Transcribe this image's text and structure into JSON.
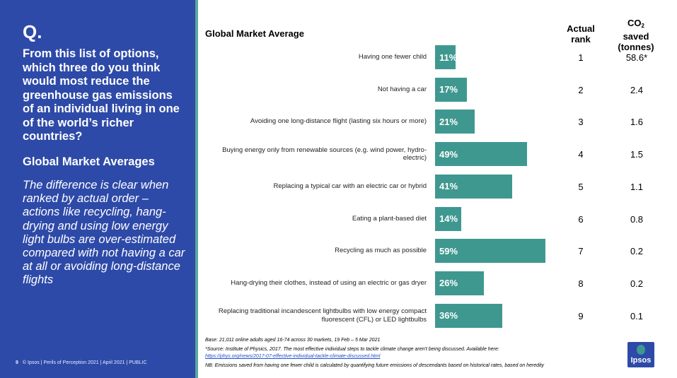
{
  "left_panel": {
    "q_label": "Q.",
    "question": "From this list of options, which three do you think would most reduce the greenhouse gas emissions of an individual living in one of the world’s richer countries?",
    "subhead": "Global Market Averages",
    "note": "The difference is clear when ranked by actual order – actions like recycling, hang-drying and using low energy light bulbs are over-estimated compared with not having a car at all or avoiding long-distance flights",
    "page_number": "9",
    "footer": "© Ipsos | Perils of Perception 2021 | April 2021 | PUBLIC"
  },
  "columns": {
    "rank_line1": "Actual",
    "rank_line2": "rank",
    "co2_line1": "CO",
    "co2_sub": "2",
    "co2_line2": "saved",
    "co2_line3": "(tonnes)"
  },
  "chart_data": {
    "type": "bar",
    "orientation": "horizontal",
    "title": "Global Market Average",
    "value_unit": "%",
    "x_range": [
      0,
      100
    ],
    "categories": [
      "Having one fewer child",
      "Not having a car",
      "Avoiding one long-distance flight (lasting six hours or more)",
      "Buying energy only from renewable sources (e.g. wind power, hydro-electric)",
      "Replacing a typical car with an electric car or hybrid",
      "Eating a plant-based diet",
      "Recycling as much as possible",
      "Hang-drying their clothes, instead of using an electric or gas dryer",
      "Replacing traditional incandescent lightbulbs with low energy compact fluorescent (CFL) or LED lightbulbs"
    ],
    "values": [
      11,
      17,
      21,
      49,
      41,
      14,
      59,
      26,
      36
    ],
    "value_labels": [
      "11%",
      "17%",
      "21%",
      "49%",
      "41%",
      "14%",
      "59%",
      "26%",
      "36%"
    ],
    "actual_rank": [
      "1",
      "2",
      "3",
      "4",
      "5",
      "6",
      "7",
      "8",
      "9"
    ],
    "co2_saved_tonnes": [
      "58.6*",
      "2.4",
      "1.6",
      "1.5",
      "1.1",
      "0.8",
      "0.2",
      "0.2",
      "0.1"
    ],
    "bar_color": "#3f9890"
  },
  "footnotes": {
    "base": "Base: 21,011 online adults aged 16-74 across 30 markets,  19 Feb – 5 Mar 2021",
    "source": "*Source: Institute of Physics, 2017. The most effective individual steps to tackle climate change aren't being discussed. Available here:",
    "source_link": "https://phys.org/news/2017-07-effective-individual-tackle-climate-discussed.html",
    "nb": "NB: Emissions saved from having one fewer child is calculated by quantifying future emissions of descendants based on historical rates, based on heredity"
  },
  "logo": {
    "text": "Ipsos"
  },
  "colors": {
    "panel": "#2e4aa8",
    "accent": "#3f9890"
  }
}
